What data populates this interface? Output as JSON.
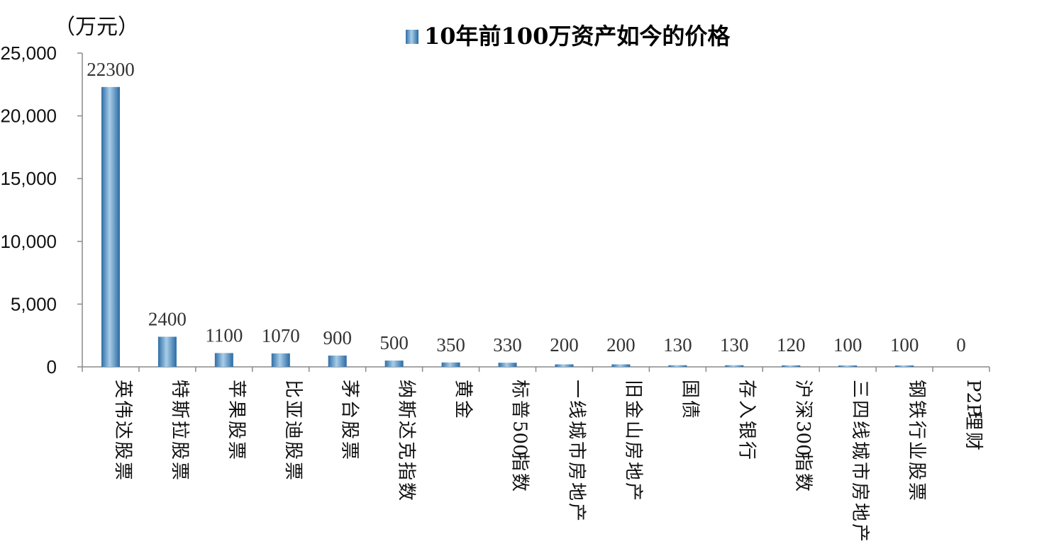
{
  "chart_data": {
    "type": "bar",
    "title": "",
    "unit_label": "（万元）",
    "legend": {
      "label": "10年前100万资产如今的价格",
      "placement": "top-center"
    },
    "series": [
      {
        "name": "10年前100万资产如今的价格",
        "color": "#4a8fc4"
      }
    ],
    "categories": [
      "英伟达股票",
      "特斯拉股票",
      "苹果股票",
      "比亚迪股票",
      "茅台股票",
      "纳斯达克指数",
      "黄金",
      "标普500指数",
      "一线城市房地产",
      "旧金山房地产",
      "国债",
      "存入银行",
      "沪深300指数",
      "三四线城市房地产",
      "钢铁行业股票",
      "P2P理财"
    ],
    "values": [
      22300,
      2400,
      1100,
      1070,
      900,
      500,
      350,
      330,
      200,
      200,
      130,
      130,
      120,
      100,
      100,
      0
    ],
    "data_labels": [
      "22300",
      "2400",
      "1100",
      "1070",
      "900",
      "500",
      "350",
      "330",
      "200",
      "200",
      "130",
      "130",
      "120",
      "100",
      "100",
      "0"
    ],
    "ylim": [
      0,
      25000
    ],
    "yticks": [
      0,
      5000,
      10000,
      15000,
      20000,
      25000
    ],
    "ytick_labels": [
      "0",
      "5,000",
      "10,000",
      "15,000",
      "20,000",
      "25,000"
    ],
    "xlabel": "",
    "ylabel": "",
    "grid": false
  }
}
